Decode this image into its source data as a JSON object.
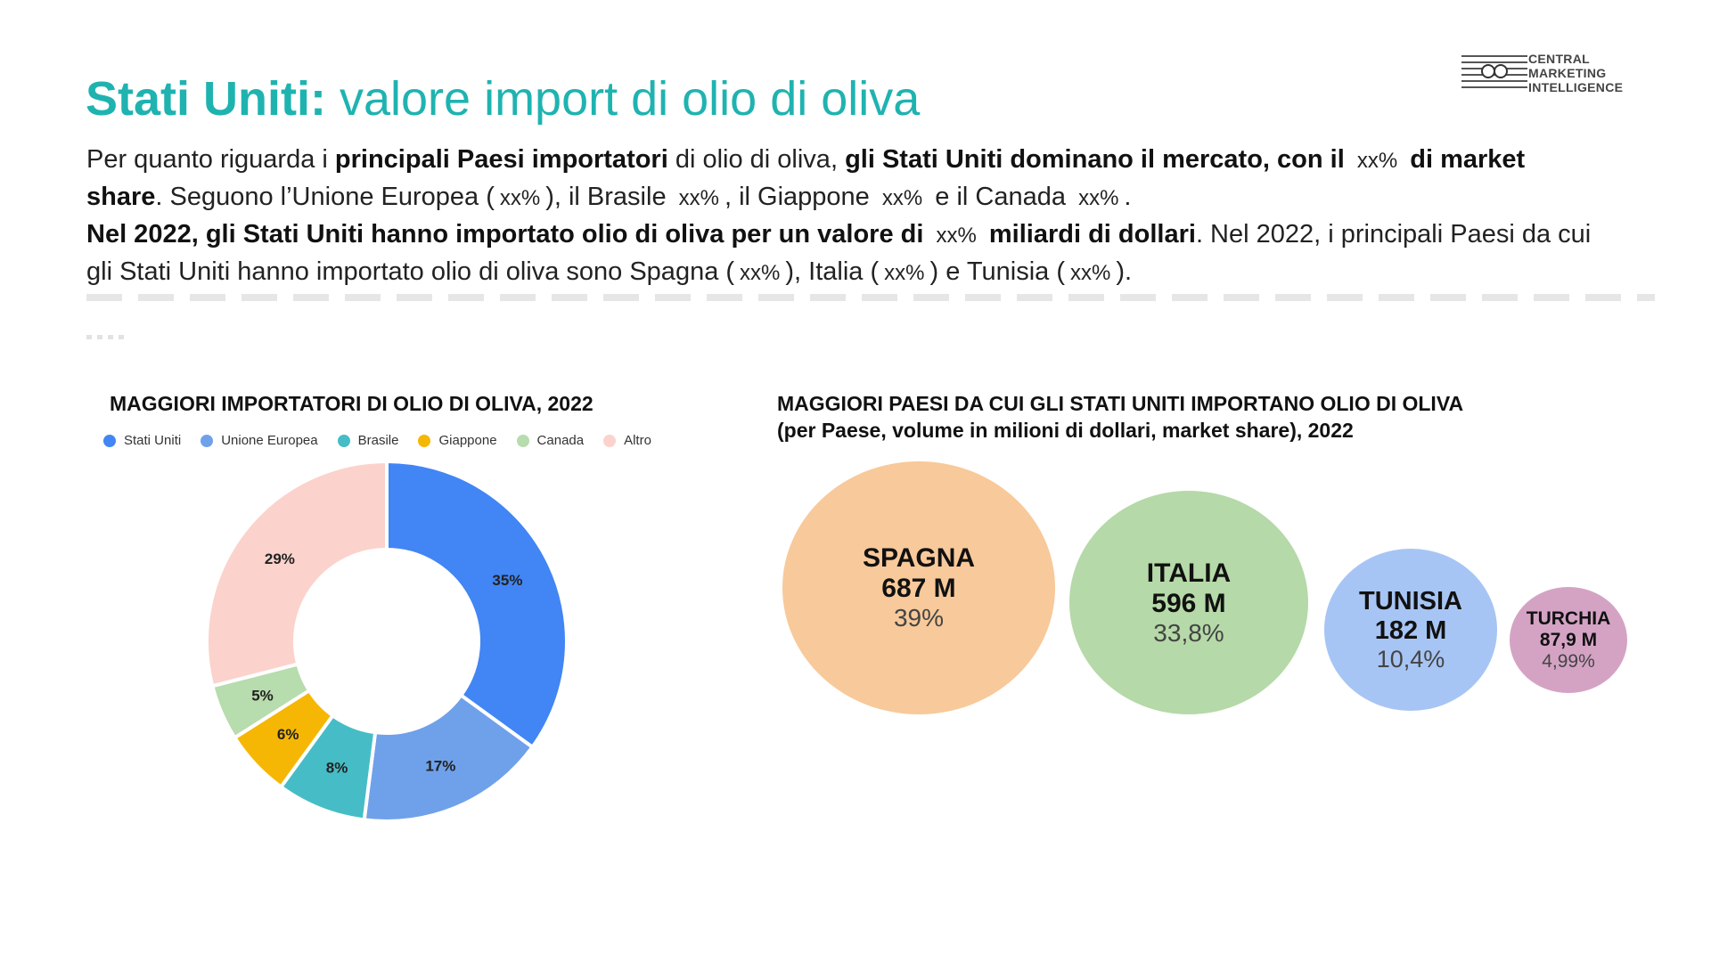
{
  "header": {
    "title_strong": "Stati Uniti:",
    "title_rest": " valore import di olio di oliva",
    "logo_lines": [
      "CENTRAL",
      "MARKETING",
      "INTELLIGENCE"
    ]
  },
  "intro": {
    "l1_a": "Per quanto riguarda i ",
    "l1_b": "principali Paesi importatori",
    "l1_c": " di olio di oliva, ",
    "l1_d": "gli Stati Uniti dominano il mercato, con il",
    "l1_ph": "xx%",
    "l1_e": "di market",
    "l2_a": "share",
    "l2_b": ". Seguono l’Unione Europea (",
    "l2_ph1": "xx%",
    "l2_c": "), il Brasile",
    "l2_ph2": "xx%",
    "l2_d": ", il Giappone",
    "l2_ph3": "xx%",
    "l2_e": "e il Canada",
    "l2_ph4": "xx%",
    "l2_f": ".",
    "l3_a": "Nel 2022, gli Stati Uniti hanno importato olio di oliva per un valore di",
    "l3_ph": "xx%",
    "l3_b": "miliardi di dollari",
    "l3_c": ". Nel 2022, i principali Paesi da cui",
    "l4_a": "gli Stati Uniti hanno importato olio di oliva sono Spagna (",
    "l4_ph1": "xx%",
    "l4_b": "), Italia (",
    "l4_ph2": "xx%",
    "l4_c": ") e Tunisia (",
    "l4_ph3": "xx%",
    "l4_d": ")."
  },
  "chart_data": [
    {
      "type": "pie",
      "title": "MAGGIORI IMPORTATORI DI OLIO DI OLIVA, 2022",
      "legend_position": "top",
      "categories": [
        "Stati Uniti",
        "Unione Europea",
        "Brasile",
        "Giappone",
        "Canada",
        "Altro"
      ],
      "values": [
        35,
        17,
        8,
        6,
        5,
        29
      ],
      "labels": [
        "35%",
        "17%",
        "8%",
        "6%",
        "5%",
        "29%"
      ],
      "colors": [
        "#4285f4",
        "#6fa1ea",
        "#46bdc6",
        "#f6b704",
        "#b7dcad",
        "#fbd3cc"
      ],
      "donut": true
    },
    {
      "type": "bubble",
      "title": "MAGGIORI PAESI DA CUI GLI STATI UNITI IMPORTANO OLIO DI OLIVA",
      "subtitle": "(per Paese, volume in milioni di dollari, market share), 2022",
      "items": [
        {
          "name": "SPAGNA",
          "value_label": "687 M",
          "value": 687,
          "share": "39%",
          "color": "#f8c99a"
        },
        {
          "name": "ITALIA",
          "value_label": "596 M",
          "value": 596,
          "share": "33,8%",
          "color": "#b5d9a8"
        },
        {
          "name": "TUNISIA",
          "value_label": "182 M",
          "value": 182,
          "share": "10,4%",
          "color": "#a7c5f4"
        },
        {
          "name": "TURCHIA",
          "value_label": "87,9 M",
          "value": 87.9,
          "share": "4,99%",
          "color": "#d4a3c4"
        }
      ]
    }
  ]
}
